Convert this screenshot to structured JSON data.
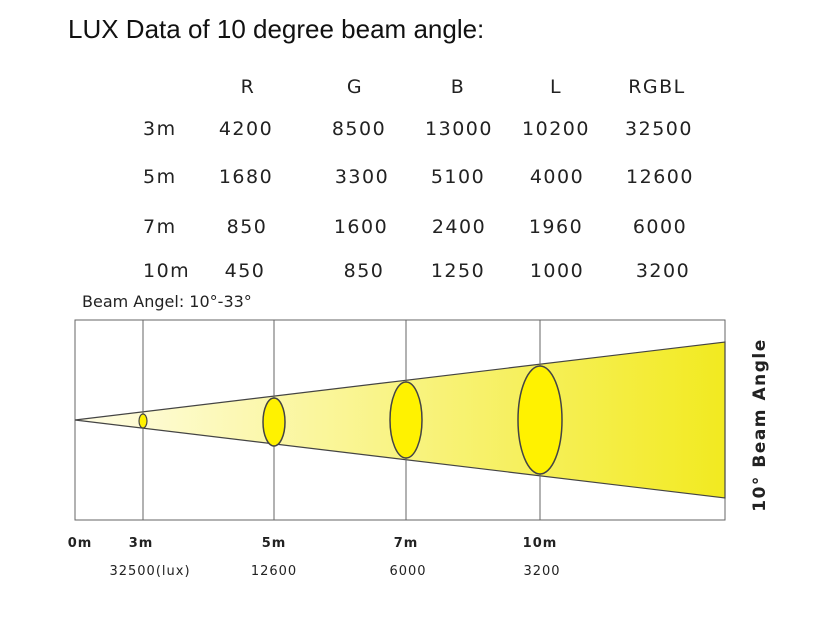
{
  "title": "LUX Data of 10 degree beam angle:",
  "table": {
    "columns": [
      "R",
      "G",
      "B",
      "L",
      "RGBL"
    ],
    "rows": [
      {
        "distance": "3m",
        "values": [
          "4200",
          "8500",
          "13000",
          "10200",
          "32500"
        ]
      },
      {
        "distance": "5m",
        "values": [
          "1680",
          "3300",
          "5100",
          "4000",
          "12600"
        ]
      },
      {
        "distance": "7m",
        "values": [
          "850",
          "1600",
          "2400",
          "1960",
          "6000"
        ]
      },
      {
        "distance": "10m",
        "values": [
          "450",
          "850",
          "1250",
          "1000",
          "3200"
        ]
      }
    ]
  },
  "beam_angle_text": "Beam Angel: 10°-33°",
  "diagram": {
    "side_label": "10° Beam Angle",
    "axis": [
      {
        "label": "0m",
        "lux": ""
      },
      {
        "label": "3m",
        "lux": "32500(lux)"
      },
      {
        "label": "5m",
        "lux": "12600"
      },
      {
        "label": "7m",
        "lux": "6000"
      },
      {
        "label": "10m",
        "lux": "3200"
      }
    ],
    "colors": {
      "beam_light": "#fffde6",
      "beam_dark": "#f2ea20",
      "ellipse_fill": "#fff200",
      "line": "#444444"
    }
  }
}
